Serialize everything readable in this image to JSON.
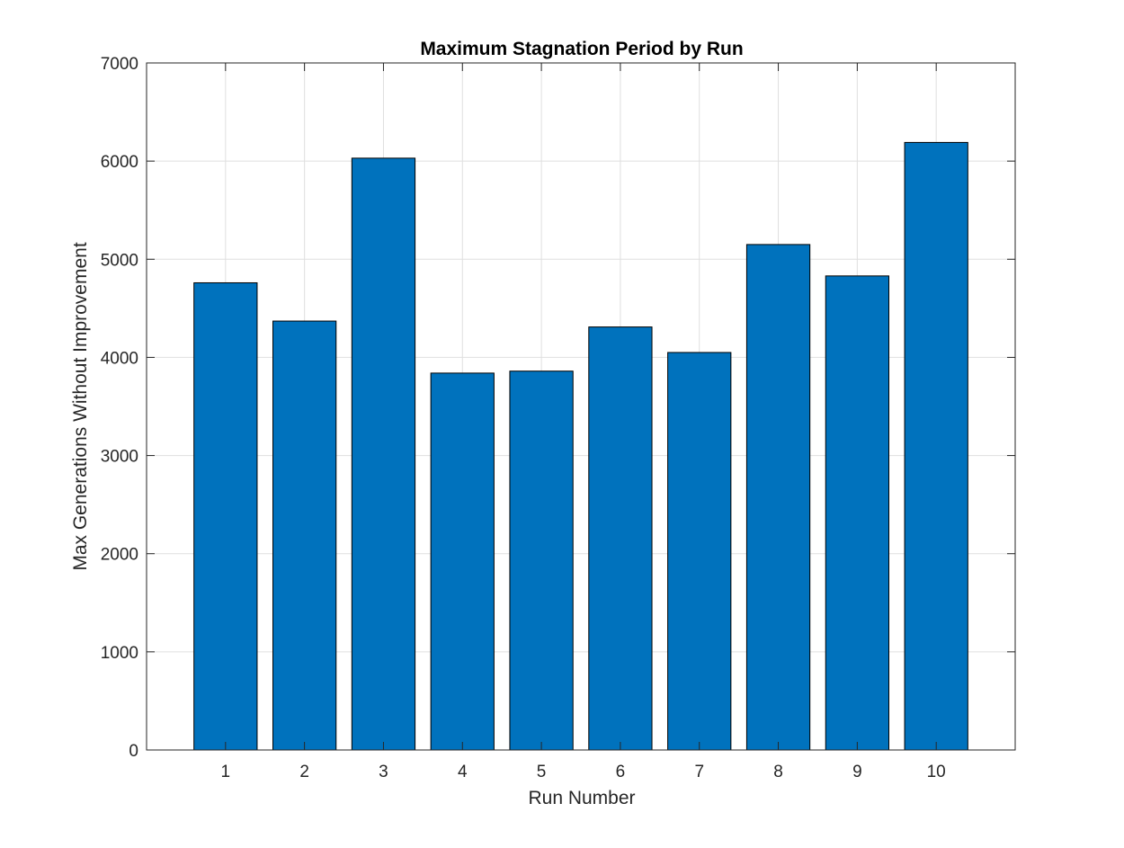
{
  "chart_data": {
    "type": "bar",
    "title": "Maximum Stagnation Period by Run",
    "xlabel": "Run Number",
    "ylabel": "Max Generations Without Improvement",
    "categories": [
      "1",
      "2",
      "3",
      "4",
      "5",
      "6",
      "7",
      "8",
      "9",
      "10"
    ],
    "values": [
      4760,
      4370,
      6030,
      3840,
      3860,
      4310,
      4050,
      5150,
      4830,
      6190
    ],
    "xlim": [
      0,
      11
    ],
    "ylim": [
      0,
      7000
    ],
    "yticks": [
      0,
      1000,
      2000,
      3000,
      4000,
      5000,
      6000,
      7000
    ],
    "ytick_labels": [
      "0",
      "1000",
      "2000",
      "3000",
      "4000",
      "5000",
      "6000",
      "7000"
    ],
    "grid": true,
    "colors": {
      "bar": "#0072BD",
      "bar_edge": "#000000",
      "grid": "#DFDFDF",
      "axes": "#262626"
    }
  }
}
